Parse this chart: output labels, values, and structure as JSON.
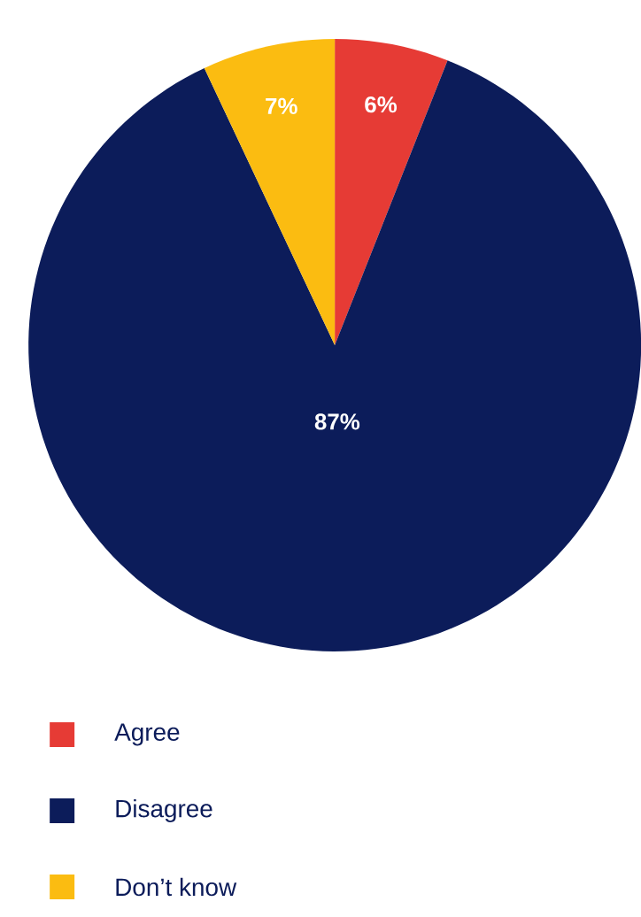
{
  "chart_data": {
    "type": "pie",
    "categories": [
      "Agree",
      "Disagree",
      "Don’t know"
    ],
    "values": [
      6,
      87,
      7
    ],
    "colors": [
      "#e63b35",
      "#0c1c5a",
      "#fbbc11"
    ],
    "value_labels": [
      "6%",
      "87%",
      "7%"
    ],
    "legend": "bottom"
  }
}
